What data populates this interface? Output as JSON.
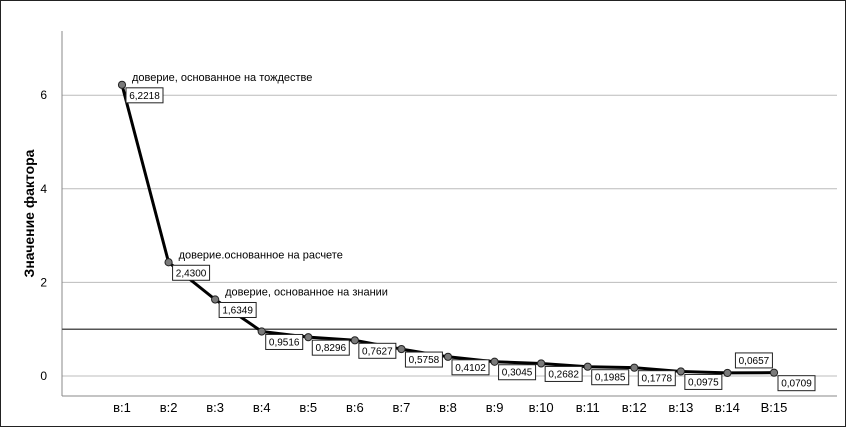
{
  "chart_data": {
    "type": "line",
    "ylabel": "Значение фактора",
    "xlabel": "",
    "ylim": [
      -0.4,
      7.4
    ],
    "yticks": [
      0,
      2,
      4,
      6
    ],
    "grid": "horizontal",
    "reference_line": 1,
    "categories": [
      "в:1",
      "в:2",
      "в:3",
      "в:4",
      "в:5",
      "в:6",
      "в:7",
      "в:8",
      "в:9",
      "в:10",
      "в:11",
      "в:12",
      "в:13",
      "в:14",
      "В:15"
    ],
    "values": [
      6.2218,
      2.43,
      1.6349,
      0.9516,
      0.8296,
      0.7627,
      0.5758,
      0.4102,
      0.3045,
      0.2682,
      0.1985,
      0.1778,
      0.0975,
      0.0657,
      0.0709
    ],
    "data_labels": [
      "6,2218",
      "2,4300",
      "1,6349",
      "0,9516",
      "0,8296",
      "0,7627",
      "0,5758",
      "0,4102",
      "0,3045",
      "0,2682",
      "0,1985",
      "0,1778",
      "0,0975",
      "0,0657",
      "0,0709"
    ],
    "annotations": [
      {
        "index": 0,
        "text": "доверие, основанное на тождестве"
      },
      {
        "index": 1,
        "text": "доверие.основанное на расчете"
      },
      {
        "index": 2,
        "text": "доверие, основанное на знании"
      }
    ]
  }
}
